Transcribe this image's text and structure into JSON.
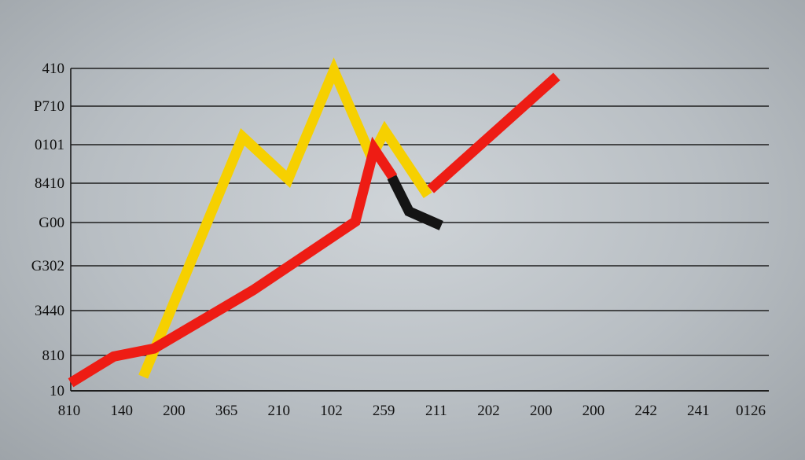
{
  "chart_data": {
    "type": "line",
    "title": "",
    "xlabel": "",
    "ylabel": "",
    "grid": true,
    "legend": "none",
    "x_ticks": [
      "810",
      "140",
      "200",
      "365",
      "210",
      "102",
      "259",
      "211",
      "202",
      "200",
      "200",
      "242",
      "241",
      "0126"
    ],
    "y_ticks": [
      "10",
      "810",
      "3440",
      "G302",
      "G00",
      "8410",
      "0101",
      "P710",
      "410"
    ],
    "y_range": [
      0,
      8
    ],
    "x_range": [
      0,
      13
    ],
    "series": [
      {
        "color": "#f6d000",
        "points": [
          [
            1.35,
            0.35
          ],
          [
            3.2,
            6.3
          ],
          [
            4.05,
            5.25
          ],
          [
            4.9,
            7.95
          ],
          [
            5.6,
            5.8
          ],
          [
            5.85,
            6.45
          ],
          [
            6.65,
            4.85
          ]
        ]
      },
      {
        "color": "#ee1c14",
        "points": [
          [
            0,
            0.2
          ],
          [
            0.8,
            0.85
          ],
          [
            1.55,
            1.05
          ],
          [
            3.4,
            2.5
          ],
          [
            5.3,
            4.2
          ],
          [
            5.65,
            6.0
          ],
          [
            6.0,
            5.3
          ]
        ]
      },
      {
        "color": "#ee1c14",
        "points": [
          [
            6.7,
            5.0
          ],
          [
            9.05,
            7.8
          ]
        ]
      },
      {
        "color": "#141414",
        "points": [
          [
            5.98,
            5.3
          ],
          [
            6.3,
            4.45
          ],
          [
            6.9,
            4.1
          ]
        ]
      }
    ]
  }
}
